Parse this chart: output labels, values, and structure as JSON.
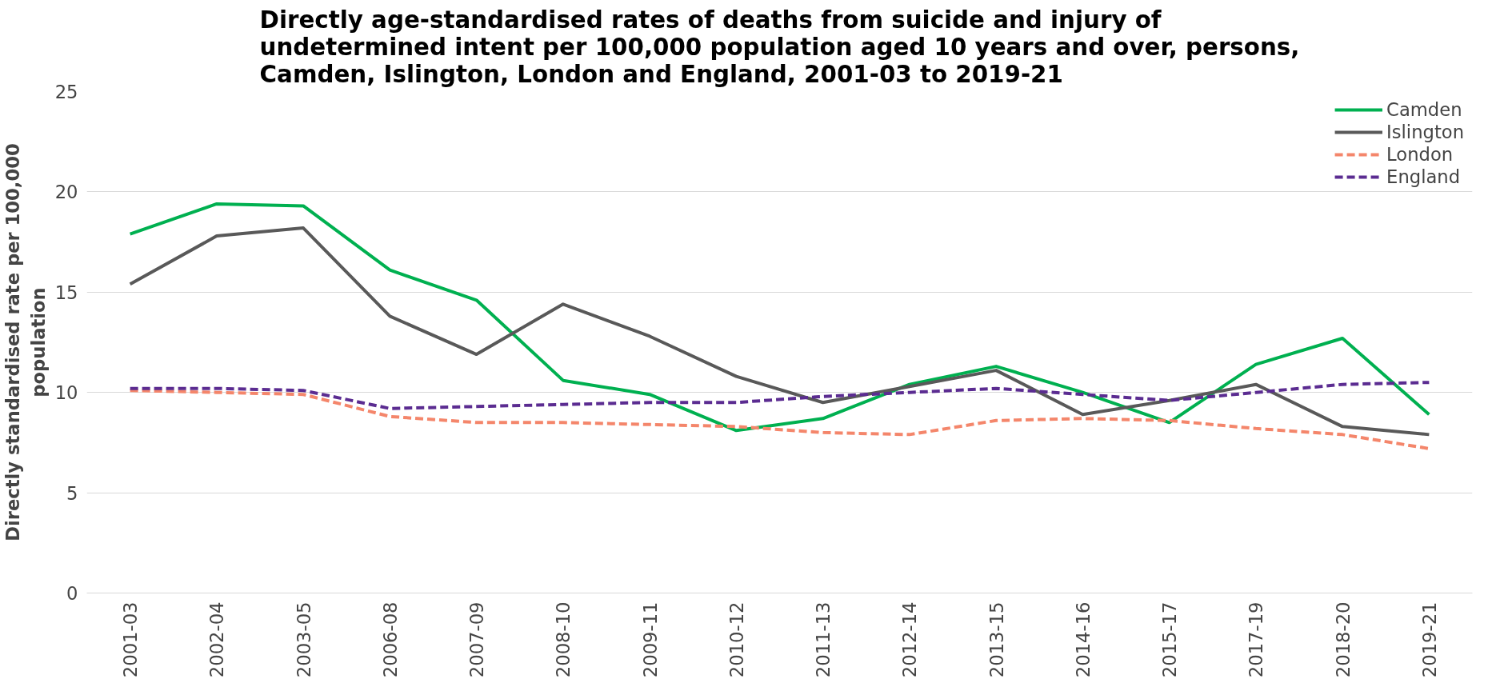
{
  "chart_data": {
    "type": "line",
    "title": "Directly age-standardised rates of deaths from suicide and injury of undetermined intent per 100,000 population aged 10 years and over, persons, Camden, Islington, London and England, 2001-03 to 2019-21",
    "ylabel": "Directly standardised rate per 100,000 population",
    "categories": [
      "2001-03",
      "2002-04",
      "2003-05",
      "2006-08",
      "2007-09",
      "2008-10",
      "2009-11",
      "2010-12",
      "2011-13",
      "2012-14",
      "2013-15",
      "2014-16",
      "2015-17",
      "2017-19",
      "2018-20",
      "2019-21"
    ],
    "series": [
      {
        "name": "Camden",
        "color": "#00b050",
        "line_style": "solid",
        "values": [
          17.9,
          19.4,
          19.3,
          16.1,
          14.6,
          10.6,
          9.9,
          8.1,
          8.7,
          10.4,
          11.3,
          10.0,
          8.5,
          11.4,
          12.7,
          8.9
        ]
      },
      {
        "name": "Islington",
        "color": "#595959",
        "line_style": "solid",
        "values": [
          15.4,
          17.8,
          18.2,
          13.8,
          11.9,
          14.4,
          12.8,
          10.8,
          9.5,
          10.3,
          11.1,
          8.9,
          9.6,
          10.4,
          8.3,
          7.9
        ]
      },
      {
        "name": "London",
        "color": "#f4866b",
        "line_style": "dashed",
        "values": [
          10.1,
          10.0,
          9.9,
          8.8,
          8.5,
          8.5,
          8.4,
          8.3,
          8.0,
          7.9,
          8.6,
          8.7,
          8.6,
          8.2,
          7.9,
          7.2
        ]
      },
      {
        "name": "England",
        "color": "#5b2c91",
        "line_style": "dashed",
        "values": [
          10.2,
          10.2,
          10.1,
          9.2,
          9.3,
          9.4,
          9.5,
          9.5,
          9.8,
          10.0,
          10.2,
          9.9,
          9.6,
          10.0,
          10.4,
          10.5
        ]
      }
    ],
    "ylim": [
      0,
      25
    ],
    "yticks": [
      0,
      5,
      10,
      15,
      20,
      25
    ],
    "grid": "y",
    "legend": "top right",
    "marker": "none"
  }
}
